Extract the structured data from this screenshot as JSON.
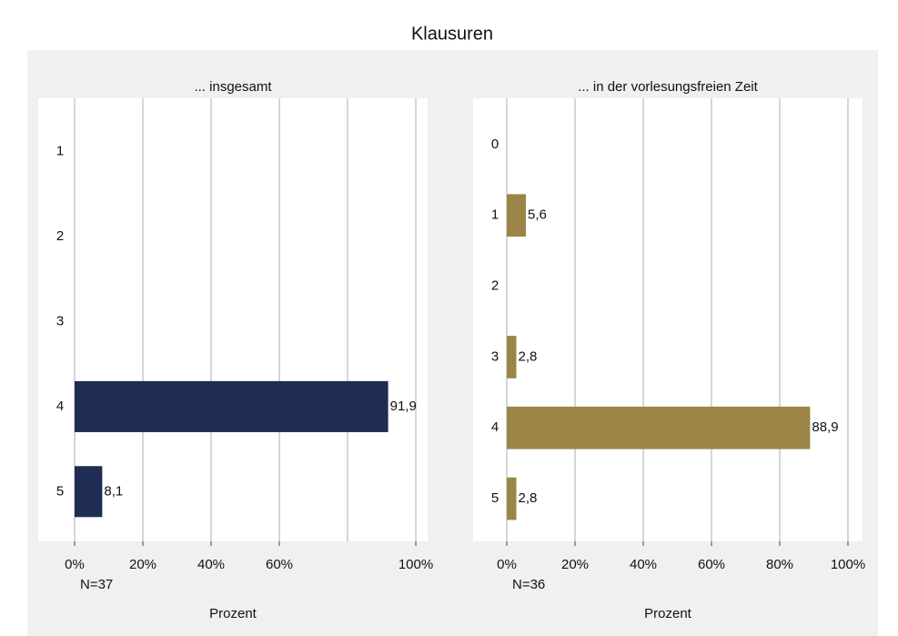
{
  "title": "Klausuren",
  "chart_data": [
    {
      "type": "bar",
      "orientation": "horizontal",
      "title": "... insgesamt",
      "categories": [
        "1",
        "2",
        "3",
        "4",
        "5"
      ],
      "values": [
        null,
        null,
        null,
        91.9,
        8.1
      ],
      "value_labels": [
        null,
        null,
        null,
        "91,9",
        "8,1"
      ],
      "color": "#1f2d54",
      "xlim": [
        0,
        100
      ],
      "xticks": [
        {
          "value": 0,
          "label": "0%"
        },
        {
          "value": 20,
          "label": "20%"
        },
        {
          "value": 40,
          "label": "40%"
        },
        {
          "value": 60,
          "label": "60%"
        },
        {
          "value": 100,
          "label": "100%"
        }
      ],
      "grid_lines": [
        0,
        20,
        40,
        60,
        80,
        100
      ],
      "note": "N=37",
      "xlabel": "Prozent"
    },
    {
      "type": "bar",
      "orientation": "horizontal",
      "title": "... in der vorlesungsfreien Zeit",
      "categories": [
        "0",
        "1",
        "2",
        "3",
        "4",
        "5"
      ],
      "values": [
        null,
        5.6,
        null,
        2.8,
        88.9,
        2.8
      ],
      "value_labels": [
        null,
        "5,6",
        null,
        "2,8",
        "88,9",
        "2,8"
      ],
      "color": "#9b8546",
      "xlim": [
        0,
        100
      ],
      "xticks": [
        {
          "value": 0,
          "label": "0%"
        },
        {
          "value": 20,
          "label": "20%"
        },
        {
          "value": 40,
          "label": "40%"
        },
        {
          "value": 60,
          "label": "60%"
        },
        {
          "value": 80,
          "label": "80%"
        },
        {
          "value": 100,
          "label": "100%"
        }
      ],
      "grid_lines": [
        0,
        20,
        40,
        60,
        80,
        100
      ],
      "note": "N=36",
      "xlabel": "Prozent"
    }
  ]
}
